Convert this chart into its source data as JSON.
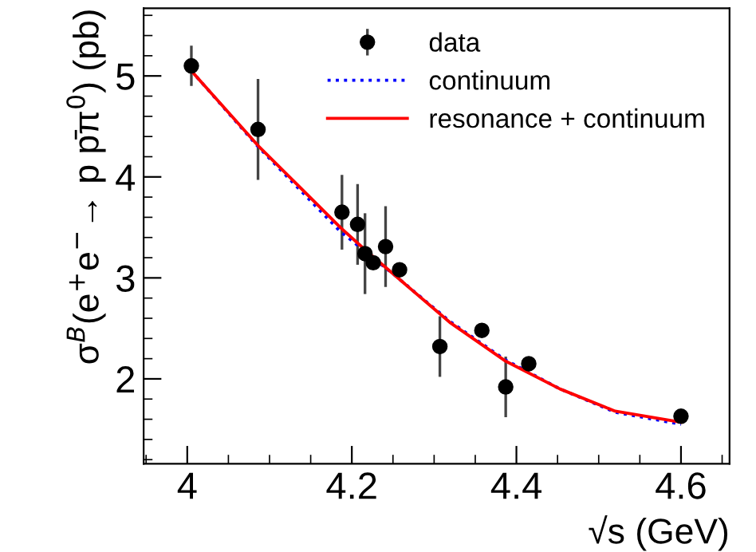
{
  "chart_data": {
    "type": "scatter",
    "xlabel": "√s (GeV)",
    "ylabel": "σ$^{B}$(e$^{+}$e$^{−}$→ p p̄π$^{0}$) (pb)",
    "xlim": [
      3.947,
      4.659
    ],
    "ylim": [
      1.16,
      5.67
    ],
    "xticks": [
      {
        "value": 4,
        "label": "4"
      },
      4.2,
      4.4,
      4.6
    ],
    "yticks": [
      2,
      3,
      4,
      5
    ],
    "legend": "top right",
    "grid": false,
    "series": [
      {
        "name": "data",
        "color": "#000000",
        "marker": "circle",
        "x": [
          4.005,
          4.086,
          4.188,
          4.207,
          4.216,
          4.226,
          4.241,
          4.258,
          4.307,
          4.358,
          4.387,
          4.415,
          4.6
        ],
        "values": [
          5.1,
          4.47,
          3.65,
          3.53,
          3.24,
          3.15,
          3.31,
          3.08,
          2.32,
          2.48,
          1.92,
          2.15,
          1.63
        ],
        "errors": [
          0.2,
          0.5,
          0.37,
          0.4,
          0.4,
          0.05,
          0.4,
          0.07,
          0.3,
          0.07,
          0.3,
          0.07,
          0.06
        ]
      },
      {
        "name": "continuum",
        "type": "line",
        "color": "#0000ff",
        "line_style": "dotted",
        "x": [
          4.005,
          4.086,
          4.186,
          4.253,
          4.319,
          4.386,
          4.453,
          4.52,
          4.6
        ],
        "values": [
          5.05,
          4.3,
          3.46,
          3.02,
          2.57,
          2.19,
          1.9,
          1.67,
          1.55
        ]
      },
      {
        "name": "resonance + continuum",
        "type": "line",
        "color": "#ff0000",
        "line_style": "solid",
        "x": [
          4.005,
          4.086,
          4.186,
          4.22,
          4.253,
          4.319,
          4.386,
          4.453,
          4.52,
          4.6
        ],
        "values": [
          5.05,
          4.31,
          3.5,
          3.25,
          3.02,
          2.56,
          2.18,
          1.9,
          1.68,
          1.57
        ]
      }
    ]
  }
}
